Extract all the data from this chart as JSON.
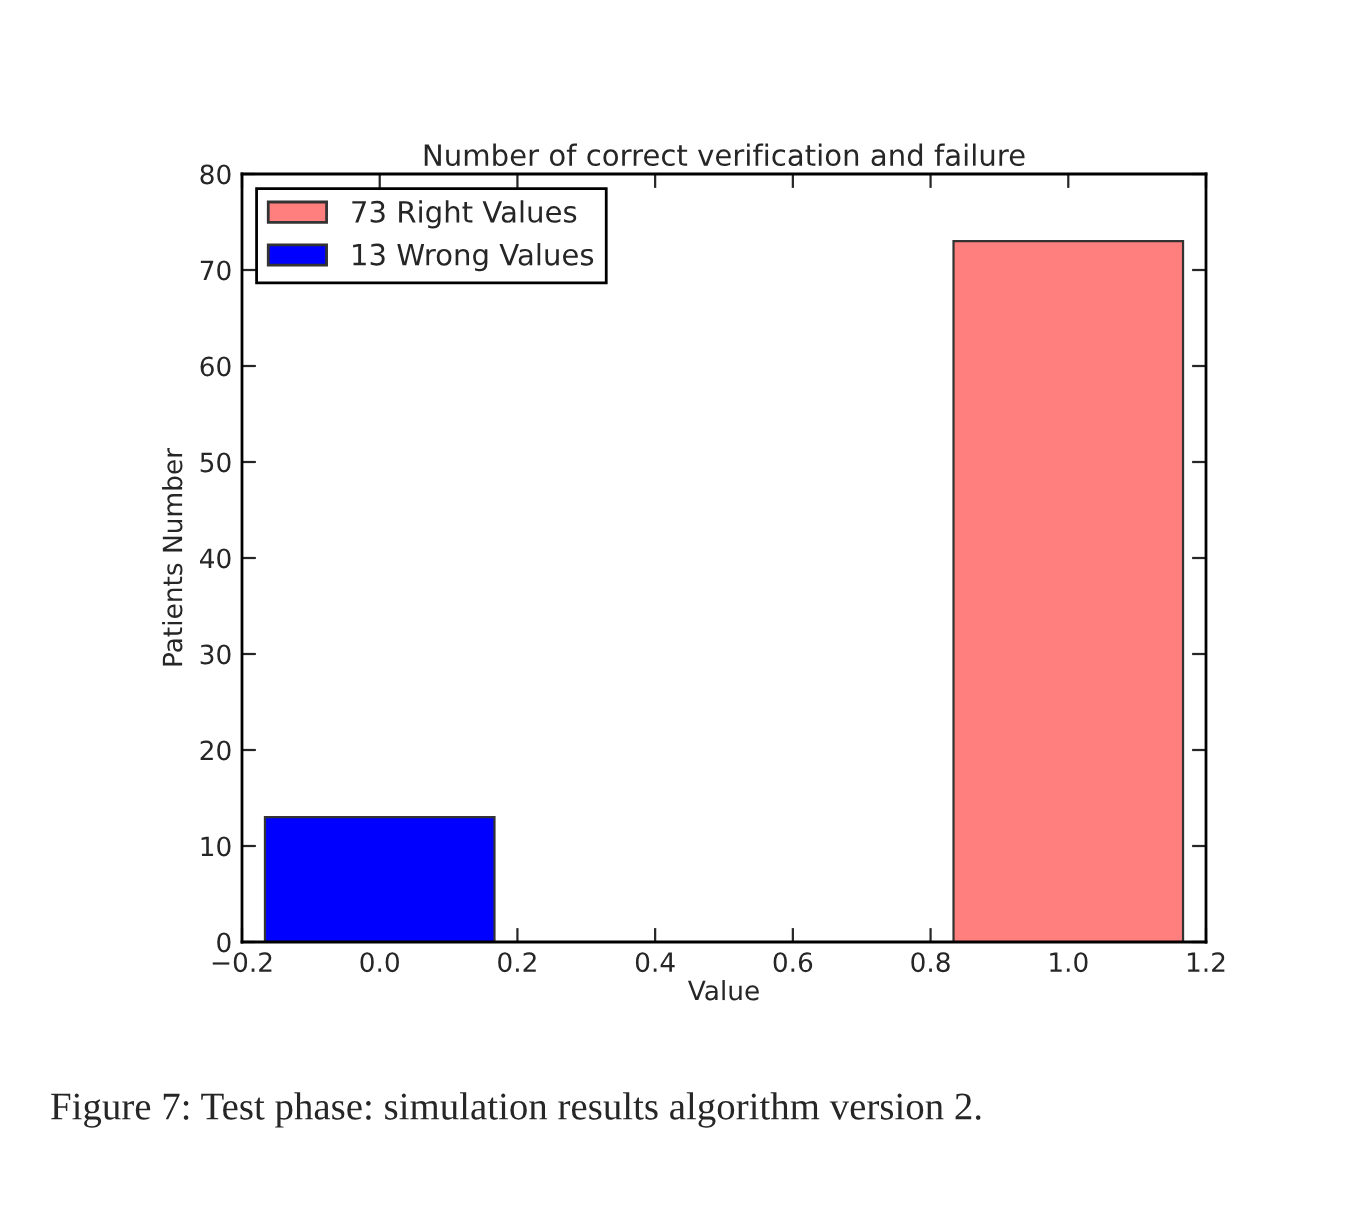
{
  "chart_data": {
    "type": "bar",
    "title": "Number of correct verification and failure",
    "xlabel": "Value",
    "ylabel": "Patients Number",
    "series": [
      {
        "name": "73 Right Values",
        "color": "#ff7f7f",
        "x": [
          1.0
        ],
        "values": [
          73
        ]
      },
      {
        "name": "13 Wrong Values",
        "color": "#0000ff",
        "x": [
          0.0
        ],
        "values": [
          13
        ]
      }
    ],
    "xlim": [
      -0.2,
      1.2
    ],
    "xticks": [
      {
        "value": -0.2,
        "label": "−0.2"
      },
      {
        "value": 0.0,
        "label": "0.0"
      },
      {
        "value": 0.2,
        "label": "0.2"
      },
      {
        "value": 0.4,
        "label": "0.4"
      },
      {
        "value": 0.6,
        "label": "0.6"
      },
      {
        "value": 0.8,
        "label": "0.8"
      },
      {
        "value": 1.0,
        "label": "1.0"
      },
      {
        "value": 1.2,
        "label": "1.2"
      }
    ],
    "ylim": [
      0,
      80
    ],
    "yticks": [
      0,
      10,
      20,
      30,
      40,
      50,
      60,
      70,
      80
    ],
    "legend": "top left",
    "grid": false,
    "annotations": [
      "Figure 7: Test phase: simulation results algorithm version 2."
    ]
  }
}
